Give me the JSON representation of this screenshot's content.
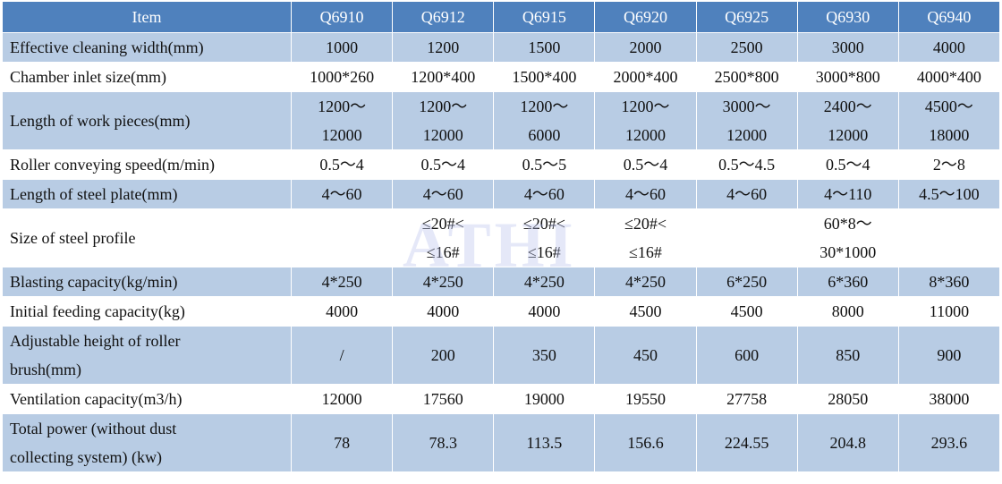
{
  "watermark": "ATHI",
  "table": {
    "header": [
      "Item",
      "Q6910",
      "Q6912",
      "Q6915",
      "Q6920",
      "Q6925",
      "Q6930",
      "Q6940"
    ],
    "rows": [
      [
        "Effective cleaning width(mm)",
        "1000",
        "1200",
        "1500",
        "2000",
        "2500",
        "3000",
        "4000"
      ],
      [
        "Chamber inlet size(mm)",
        "1000*260",
        "1200*400",
        "1500*400",
        "2000*400",
        "2500*800",
        "3000*800",
        "4000*400"
      ],
      [
        "Length of work pieces(mm)",
        "1200～\n12000",
        "1200～\n12000",
        "1200～\n6000",
        "1200～\n12000",
        "3000～\n12000",
        "2400～\n12000",
        "4500～\n18000"
      ],
      [
        "Roller conveying speed(m/min)",
        "0.5～4",
        "0.5～4",
        "0.5～5",
        "0.5～4",
        "0.5～4.5",
        "0.5～4",
        "2～8"
      ],
      [
        "Length of steel plate(mm)",
        "4～60",
        "4～60",
        "4～60",
        "4～60",
        "4～60",
        "4～110",
        "4.5～100"
      ],
      [
        "Size of steel profile",
        "",
        "≤20#<\n≤16#",
        "≤20#<\n≤16#",
        "≤20#<\n≤16#",
        "",
        "60*8～\n30*1000",
        ""
      ],
      [
        "Blasting capacity(kg/min)",
        "4*250",
        "4*250",
        "4*250",
        "4*250",
        "6*250",
        "6*360",
        "8*360"
      ],
      [
        "Initial feeding capacity(kg)",
        "4000",
        "4000",
        "4000",
        "4500",
        "4500",
        "8000",
        "11000"
      ],
      [
        "Adjustable height of roller\nbrush(mm)",
        "/",
        "200",
        "350",
        "450",
        "600",
        "850",
        "900"
      ],
      [
        "Ventilation capacity(m3/h)",
        "12000",
        "17560",
        "19000",
        "19550",
        "27758",
        "28050",
        "38000"
      ],
      [
        "Total power (without dust\ncollecting system) (kw)",
        "78",
        "78.3",
        "113.5",
        "156.6",
        "224.55",
        "204.8",
        "293.6"
      ]
    ]
  }
}
